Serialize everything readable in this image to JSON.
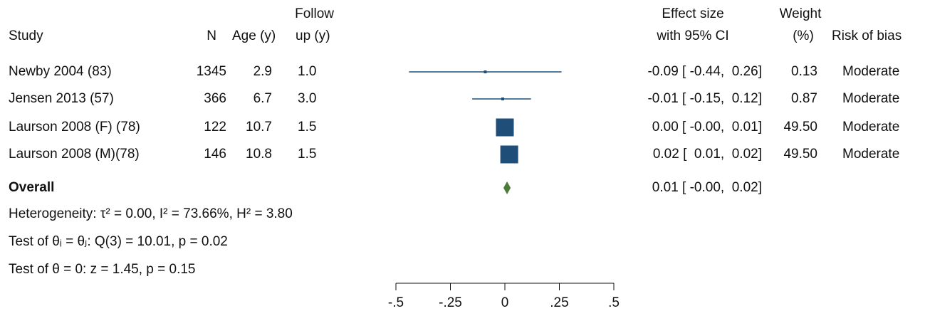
{
  "chart_data": {
    "type": "forest",
    "columns": {
      "study": "Study",
      "n": "N",
      "age": "Age (y)",
      "follow_up": [
        "Follow",
        "up (y)"
      ],
      "effect": [
        "Effect size",
        "with 95% CI"
      ],
      "weight": [
        "Weight",
        "(%)"
      ],
      "risk": "Risk of bias"
    },
    "studies": [
      "Newby 2004 (83)",
      "Jensen 2013 (57)",
      "Laurson 2008 (F) (78)",
      "Laurson 2008 (M)(78)"
    ],
    "n": [
      1345,
      366,
      122,
      146
    ],
    "age": [
      2.9,
      6.7,
      10.7,
      10.8
    ],
    "follow_up": [
      "1.0",
      "3.0",
      "1.5",
      "1.5"
    ],
    "effect": [
      -0.09,
      -0.01,
      0,
      0.02
    ],
    "ci_low": [
      -0.44,
      -0.15,
      0,
      0.01
    ],
    "ci_high": [
      0.26,
      0.12,
      0.01,
      0.02
    ],
    "value_labels": [
      "-0.09 [ -0.44,  0.26]",
      "-0.01 [ -0.15,  0.12]",
      "0.00 [ -0.00,  0.01]",
      "0.02 [  0.01,  0.02]"
    ],
    "weights": [
      0.13,
      0.87,
      49.5,
      49.5
    ],
    "weight_labels": [
      "0.13",
      "0.87",
      "49.50",
      "49.50"
    ],
    "risk_of_bias": [
      "Moderate",
      "Moderate",
      "Moderate",
      "Moderate"
    ],
    "overall": {
      "label": "Overall",
      "effect": 0.01,
      "ci_low": 0,
      "ci_high": 0.02,
      "value_label": "0.01 [ -0.00,  0.02]"
    },
    "notes": [
      "Heterogeneity: τ² = 0.00, I² = 73.66%, H² = 3.80",
      "Test of θᵢ = θⱼ: Q(3) = 10.01, p = 0.02",
      "Test of θ = 0: z = 1.45, p = 0.15"
    ],
    "xlim": [
      -0.5,
      0.5
    ],
    "xticks": [
      {
        "value": -0.5,
        "label": "-.5"
      },
      {
        "value": -0.25,
        "label": "-.25"
      },
      0,
      {
        "value": 0.25,
        "label": ".25"
      },
      {
        "value": 0.5,
        "label": ".5"
      }
    ],
    "colors": {
      "study": "#1f4e79",
      "overall": "#4e7a3a"
    }
  }
}
